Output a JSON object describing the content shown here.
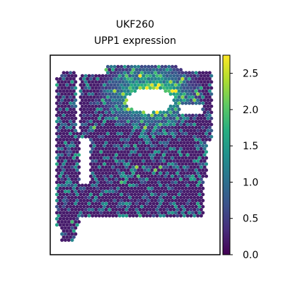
{
  "chart_data": {
    "type": "heatmap",
    "title": "UKF260",
    "subtitle": "UPP1 expression",
    "xlabel": "",
    "ylabel": "",
    "grid": false,
    "colormap": "viridis",
    "colorbar": {
      "range": [
        0.0,
        2.75
      ],
      "ticks": [
        0.0,
        0.5,
        1.0,
        1.5,
        2.0,
        2.5
      ],
      "tick_labels": [
        "0.0",
        "0.5",
        "1.0",
        "1.5",
        "2.0",
        "2.5"
      ]
    },
    "legend_placement": "right",
    "typical_spot_value": 0.2,
    "high_expression_region": "upper tissue, ringing the central hole",
    "high_expression_peak": 2.6
  }
}
